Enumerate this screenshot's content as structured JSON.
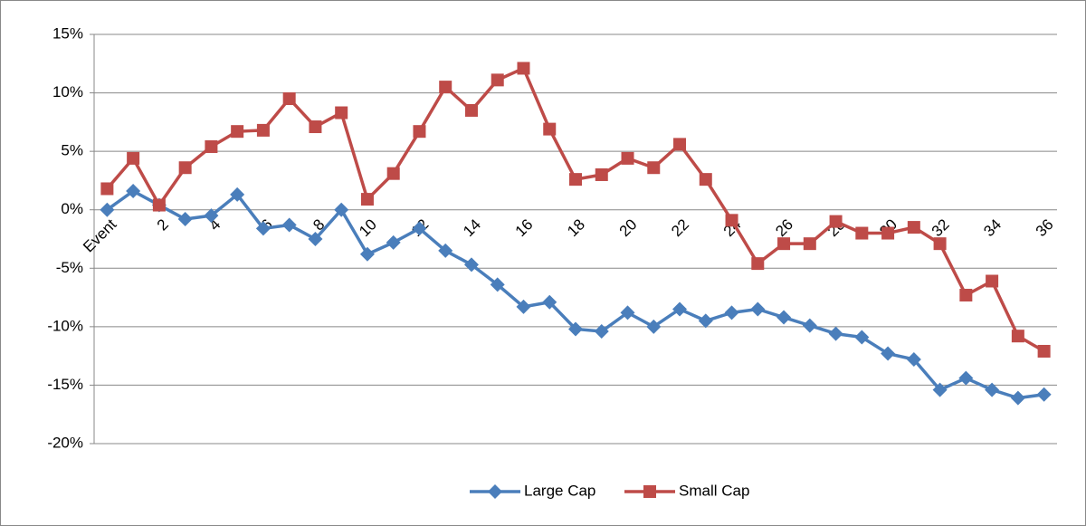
{
  "chart_data": {
    "type": "line",
    "categories": [
      "Event",
      null,
      "2",
      null,
      "4",
      null,
      "6",
      null,
      "8",
      null,
      "10",
      null,
      "12",
      null,
      "14",
      null,
      "16",
      null,
      "18",
      null,
      "20",
      null,
      "22",
      null,
      "24",
      null,
      "26",
      null,
      "28",
      null,
      "30",
      null,
      "32",
      null,
      "34",
      null,
      "36"
    ],
    "series": [
      {
        "name": "Large Cap",
        "color": "#4a7ebb",
        "marker": "diamond",
        "values": [
          0,
          1.6,
          0.4,
          -0.8,
          -0.5,
          1.3,
          -1.6,
          -1.3,
          -2.5,
          0,
          -3.8,
          -2.8,
          -1.6,
          -3.5,
          -4.7,
          -6.4,
          -8.3,
          -7.9,
          -10.2,
          -10.4,
          -8.8,
          -10.0,
          -8.5,
          -9.5,
          -8.8,
          -8.5,
          -9.2,
          -9.9,
          -10.6,
          -10.9,
          -12.3,
          -12.8,
          -15.4,
          -14.4,
          -15.4,
          -16.1,
          -15.8
        ]
      },
      {
        "name": "Small Cap",
        "color": "#be4b48",
        "marker": "square",
        "values": [
          1.8,
          4.4,
          0.4,
          3.6,
          5.4,
          6.7,
          6.8,
          9.5,
          7.1,
          8.3,
          0.9,
          3.1,
          6.7,
          10.5,
          8.5,
          11.1,
          12.1,
          6.9,
          2.6,
          3.0,
          4.4,
          3.6,
          5.6,
          2.6,
          -0.9,
          -4.6,
          -2.9,
          -2.9,
          -1.0,
          -2.0,
          -2.0,
          -1.5,
          -2.9,
          -7.3,
          -6.1,
          -10.8,
          -12.1
        ]
      }
    ],
    "ylim": [
      -20,
      15
    ],
    "yticks": [
      {
        "value": -20,
        "label": "-20%"
      },
      {
        "value": -15,
        "label": "-15%"
      },
      {
        "value": -10,
        "label": "-10%"
      },
      {
        "value": -5,
        "label": "-5%"
      },
      {
        "value": 0,
        "label": "0%"
      },
      {
        "value": 5,
        "label": "5%"
      },
      {
        "value": 10,
        "label": "10%"
      },
      {
        "value": 15,
        "label": "15%"
      }
    ],
    "grid": true,
    "legend": "bottom"
  }
}
